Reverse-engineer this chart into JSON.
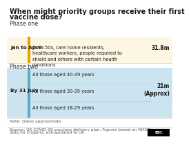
{
  "title_line1": "When might priority groups receive their first",
  "title_line2": "vaccine dose?",
  "title_fontsize": 7.0,
  "bg_color": "#ffffff",
  "phase_one_label": "Phase one",
  "phase_two_label": "Phase two",
  "phase_label_fontsize": 5.8,
  "row1_date": "Jan to April",
  "row1_desc": "Over-50s, care home residents,\nhealthcare workers, people required to\nshield and others with certain health\nconditions",
  "row1_count": "31.8m",
  "row1_bg": "#fdf6e3",
  "row1_accent": "#e8a000",
  "row2_date": "By 31 July",
  "row2_items": [
    "All those aged 40-49 years",
    "All those aged 30-39 years",
    "All those aged 18-29 years"
  ],
  "row2_count": "21m\n(Approx)",
  "row2_bg": "#cce4f0",
  "row2_accent": "#5aaac8",
  "note": "Note: Dates approximate",
  "source_line1": "Source: UK COVID-19 vaccines delivery plan, Figures based on NHSEI",
  "source_line2": "data for England, extrapolated to UK",
  "note_fontsize": 4.2,
  "date_fontsize": 5.2,
  "desc_fontsize": 4.8,
  "count_fontsize": 5.5,
  "separator_color": "#cccccc",
  "text_color": "#1a1a1a",
  "subtext_color": "#555555"
}
